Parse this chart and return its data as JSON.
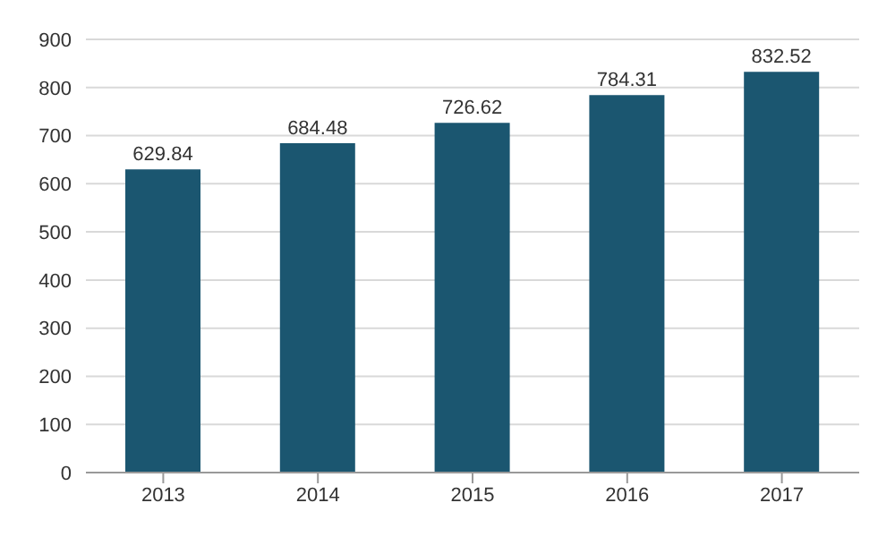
{
  "chart_data": {
    "type": "bar",
    "categories": [
      "2013",
      "2014",
      "2015",
      "2016",
      "2017"
    ],
    "values": [
      629.84,
      684.48,
      726.62,
      784.31,
      832.52
    ],
    "color": "#1b5670",
    "ylim": [
      0,
      900
    ],
    "yticks": [
      0,
      100,
      200,
      300,
      400,
      500,
      600,
      700,
      800,
      900
    ],
    "grid": "y",
    "data_labels": true
  }
}
